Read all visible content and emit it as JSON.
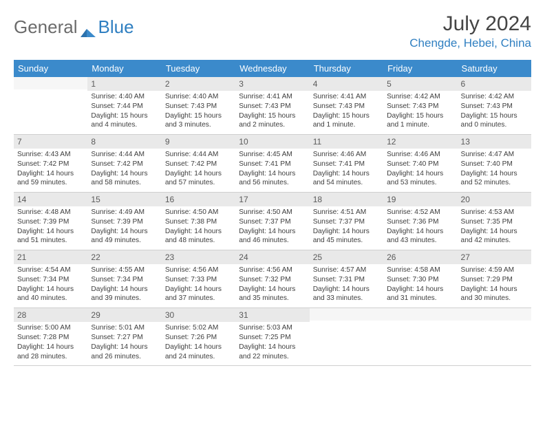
{
  "logo": {
    "word1": "General",
    "word2": "Blue"
  },
  "title": "July 2024",
  "location": "Chengde, Hebei, China",
  "header_bg": "#3b8acb",
  "header_text": "#ffffff",
  "daynum_bg": "#e9e9e9",
  "body_text": "#3d3d3d",
  "dayNames": [
    "Sunday",
    "Monday",
    "Tuesday",
    "Wednesday",
    "Thursday",
    "Friday",
    "Saturday"
  ],
  "weeks": [
    [
      null,
      {
        "n": "1",
        "sr": "Sunrise: 4:40 AM",
        "ss": "Sunset: 7:44 PM",
        "dl": "Daylight: 15 hours and 4 minutes."
      },
      {
        "n": "2",
        "sr": "Sunrise: 4:40 AM",
        "ss": "Sunset: 7:43 PM",
        "dl": "Daylight: 15 hours and 3 minutes."
      },
      {
        "n": "3",
        "sr": "Sunrise: 4:41 AM",
        "ss": "Sunset: 7:43 PM",
        "dl": "Daylight: 15 hours and 2 minutes."
      },
      {
        "n": "4",
        "sr": "Sunrise: 4:41 AM",
        "ss": "Sunset: 7:43 PM",
        "dl": "Daylight: 15 hours and 1 minute."
      },
      {
        "n": "5",
        "sr": "Sunrise: 4:42 AM",
        "ss": "Sunset: 7:43 PM",
        "dl": "Daylight: 15 hours and 1 minute."
      },
      {
        "n": "6",
        "sr": "Sunrise: 4:42 AM",
        "ss": "Sunset: 7:43 PM",
        "dl": "Daylight: 15 hours and 0 minutes."
      }
    ],
    [
      {
        "n": "7",
        "sr": "Sunrise: 4:43 AM",
        "ss": "Sunset: 7:42 PM",
        "dl": "Daylight: 14 hours and 59 minutes."
      },
      {
        "n": "8",
        "sr": "Sunrise: 4:44 AM",
        "ss": "Sunset: 7:42 PM",
        "dl": "Daylight: 14 hours and 58 minutes."
      },
      {
        "n": "9",
        "sr": "Sunrise: 4:44 AM",
        "ss": "Sunset: 7:42 PM",
        "dl": "Daylight: 14 hours and 57 minutes."
      },
      {
        "n": "10",
        "sr": "Sunrise: 4:45 AM",
        "ss": "Sunset: 7:41 PM",
        "dl": "Daylight: 14 hours and 56 minutes."
      },
      {
        "n": "11",
        "sr": "Sunrise: 4:46 AM",
        "ss": "Sunset: 7:41 PM",
        "dl": "Daylight: 14 hours and 54 minutes."
      },
      {
        "n": "12",
        "sr": "Sunrise: 4:46 AM",
        "ss": "Sunset: 7:40 PM",
        "dl": "Daylight: 14 hours and 53 minutes."
      },
      {
        "n": "13",
        "sr": "Sunrise: 4:47 AM",
        "ss": "Sunset: 7:40 PM",
        "dl": "Daylight: 14 hours and 52 minutes."
      }
    ],
    [
      {
        "n": "14",
        "sr": "Sunrise: 4:48 AM",
        "ss": "Sunset: 7:39 PM",
        "dl": "Daylight: 14 hours and 51 minutes."
      },
      {
        "n": "15",
        "sr": "Sunrise: 4:49 AM",
        "ss": "Sunset: 7:39 PM",
        "dl": "Daylight: 14 hours and 49 minutes."
      },
      {
        "n": "16",
        "sr": "Sunrise: 4:50 AM",
        "ss": "Sunset: 7:38 PM",
        "dl": "Daylight: 14 hours and 48 minutes."
      },
      {
        "n": "17",
        "sr": "Sunrise: 4:50 AM",
        "ss": "Sunset: 7:37 PM",
        "dl": "Daylight: 14 hours and 46 minutes."
      },
      {
        "n": "18",
        "sr": "Sunrise: 4:51 AM",
        "ss": "Sunset: 7:37 PM",
        "dl": "Daylight: 14 hours and 45 minutes."
      },
      {
        "n": "19",
        "sr": "Sunrise: 4:52 AM",
        "ss": "Sunset: 7:36 PM",
        "dl": "Daylight: 14 hours and 43 minutes."
      },
      {
        "n": "20",
        "sr": "Sunrise: 4:53 AM",
        "ss": "Sunset: 7:35 PM",
        "dl": "Daylight: 14 hours and 42 minutes."
      }
    ],
    [
      {
        "n": "21",
        "sr": "Sunrise: 4:54 AM",
        "ss": "Sunset: 7:34 PM",
        "dl": "Daylight: 14 hours and 40 minutes."
      },
      {
        "n": "22",
        "sr": "Sunrise: 4:55 AM",
        "ss": "Sunset: 7:34 PM",
        "dl": "Daylight: 14 hours and 39 minutes."
      },
      {
        "n": "23",
        "sr": "Sunrise: 4:56 AM",
        "ss": "Sunset: 7:33 PM",
        "dl": "Daylight: 14 hours and 37 minutes."
      },
      {
        "n": "24",
        "sr": "Sunrise: 4:56 AM",
        "ss": "Sunset: 7:32 PM",
        "dl": "Daylight: 14 hours and 35 minutes."
      },
      {
        "n": "25",
        "sr": "Sunrise: 4:57 AM",
        "ss": "Sunset: 7:31 PM",
        "dl": "Daylight: 14 hours and 33 minutes."
      },
      {
        "n": "26",
        "sr": "Sunrise: 4:58 AM",
        "ss": "Sunset: 7:30 PM",
        "dl": "Daylight: 14 hours and 31 minutes."
      },
      {
        "n": "27",
        "sr": "Sunrise: 4:59 AM",
        "ss": "Sunset: 7:29 PM",
        "dl": "Daylight: 14 hours and 30 minutes."
      }
    ],
    [
      {
        "n": "28",
        "sr": "Sunrise: 5:00 AM",
        "ss": "Sunset: 7:28 PM",
        "dl": "Daylight: 14 hours and 28 minutes."
      },
      {
        "n": "29",
        "sr": "Sunrise: 5:01 AM",
        "ss": "Sunset: 7:27 PM",
        "dl": "Daylight: 14 hours and 26 minutes."
      },
      {
        "n": "30",
        "sr": "Sunrise: 5:02 AM",
        "ss": "Sunset: 7:26 PM",
        "dl": "Daylight: 14 hours and 24 minutes."
      },
      {
        "n": "31",
        "sr": "Sunrise: 5:03 AM",
        "ss": "Sunset: 7:25 PM",
        "dl": "Daylight: 14 hours and 22 minutes."
      },
      null,
      null,
      null
    ]
  ]
}
